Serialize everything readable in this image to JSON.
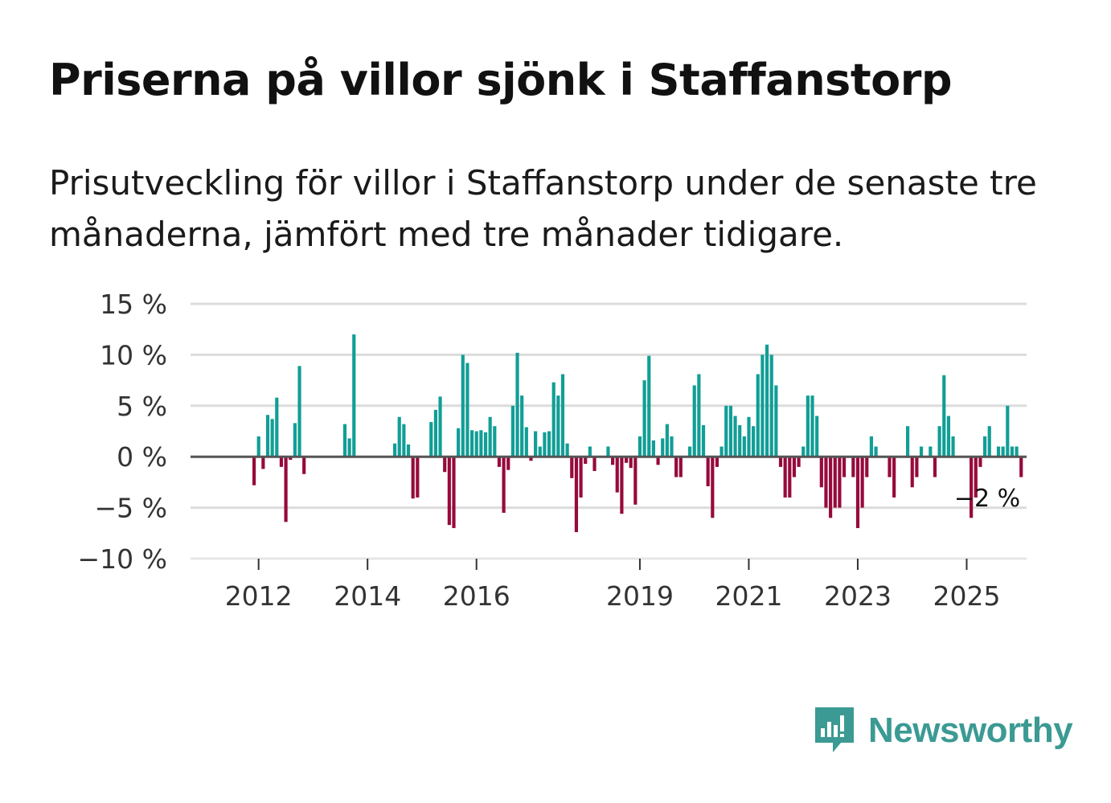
{
  "title": "Priserna på villor sjönk i Staffanstorp",
  "subtitle": "Prisutveckling för villor i Staffanstorp under de senaste tre månaderna, jämfört med tre månader tidigare.",
  "brand": "Newsworthy",
  "colors": {
    "positive": "#119e96",
    "negative": "#960a3c",
    "brand": "#3b9a93"
  },
  "chart_data": {
    "type": "bar",
    "title": "Priserna på villor sjönk i Staffanstorp",
    "xlabel": "",
    "ylabel": "",
    "ylim": [
      -10,
      15
    ],
    "yticks": [
      15,
      10,
      5,
      0,
      -5,
      -10
    ],
    "ytick_labels": [
      "15 %",
      "10 %",
      "5 %",
      "0 %",
      "−5 %",
      "−10 %"
    ],
    "xticks": [
      2012,
      2014,
      2016,
      2019,
      2021,
      2023,
      2025
    ],
    "xtick_labels": [
      "2012",
      "2014",
      "2016",
      "2019",
      "2021",
      "2023",
      "2025"
    ],
    "x_start": 2011.917,
    "xlim": [
      2010.75,
      2026.1
    ],
    "end_label": "−2 %",
    "values": [
      -2.8,
      2.0,
      -1.2,
      4.1,
      3.7,
      5.8,
      -1.0,
      -6.4,
      -0.3,
      3.3,
      8.9,
      -1.7,
      null,
      null,
      null,
      null,
      null,
      null,
      null,
      null,
      3.2,
      1.8,
      12.0,
      null,
      null,
      null,
      null,
      null,
      null,
      null,
      null,
      1.3,
      3.9,
      3.2,
      1.2,
      -4.1,
      -4.0,
      null,
      null,
      3.4,
      4.6,
      5.9,
      -1.5,
      -6.7,
      -7.0,
      2.8,
      10.0,
      9.2,
      2.6,
      2.5,
      2.6,
      2.4,
      3.9,
      3.0,
      -1.0,
      -5.5,
      -1.3,
      5.0,
      10.2,
      6.0,
      2.9,
      -0.4,
      2.5,
      1.0,
      2.4,
      2.5,
      7.3,
      6.0,
      8.1,
      1.3,
      -2.1,
      -7.4,
      -4.0,
      -0.7,
      1.0,
      -1.4,
      null,
      null,
      1.0,
      -0.8,
      -3.5,
      -5.6,
      -0.6,
      -1.1,
      -4.7,
      2.0,
      7.5,
      9.9,
      1.6,
      -0.8,
      1.8,
      3.2,
      2.0,
      -2.0,
      -2.0,
      null,
      1.0,
      7.0,
      8.1,
      3.1,
      -2.9,
      -6.0,
      -1.0,
      1.0,
      5.0,
      5.0,
      4.0,
      3.1,
      2.0,
      3.9,
      3.0,
      8.1,
      10.0,
      11.0,
      10.0,
      7.0,
      -1.0,
      -4.0,
      -4.0,
      -2.0,
      -1.0,
      1.0,
      6.0,
      6.0,
      4.0,
      -3.0,
      -5.0,
      -6.0,
      -5.0,
      -5.0,
      -2.0,
      null,
      -2.0,
      -7.0,
      -5.0,
      -2.0,
      2.0,
      1.0,
      null,
      null,
      -2.0,
      -4.0,
      null,
      null,
      3.0,
      -3.0,
      -2.0,
      1.0,
      null,
      1.0,
      -2.0,
      3.0,
      8.0,
      4.0,
      2.0,
      null,
      null,
      null,
      -6.0,
      -4.0,
      -1.0,
      2.0,
      3.0,
      null,
      1.0,
      1.0,
      5.0,
      1.0,
      1.0,
      -2.0
    ]
  }
}
